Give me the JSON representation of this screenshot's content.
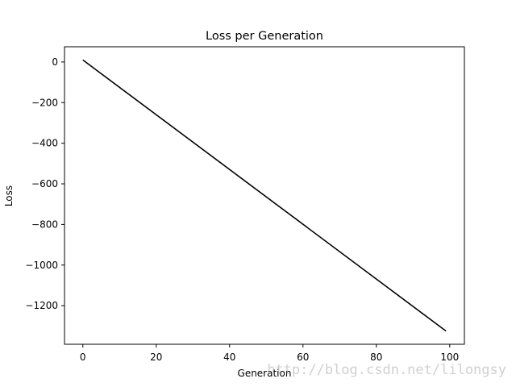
{
  "chart_data": {
    "type": "line",
    "title": "Loss per Generation",
    "xlabel": "Generation",
    "ylabel": "Loss",
    "xlim": [
      -5,
      104
    ],
    "ylim": [
      -1390,
      75
    ],
    "x_ticks": [
      0,
      20,
      40,
      60,
      80,
      100
    ],
    "y_ticks": [
      0,
      -200,
      -400,
      -600,
      -800,
      -1000,
      -1200
    ],
    "x_tick_labels": [
      "0",
      "20",
      "40",
      "60",
      "80",
      "100"
    ],
    "y_tick_labels": [
      "0",
      "−200",
      "−400",
      "−600",
      "−800",
      "−1000",
      "−1200"
    ],
    "grid": false,
    "series": [
      {
        "color": "#000000",
        "x": [
          0,
          99
        ],
        "y": [
          10,
          -1325
        ]
      }
    ]
  },
  "watermark": "http://blog.csdn.net/lilongsy"
}
